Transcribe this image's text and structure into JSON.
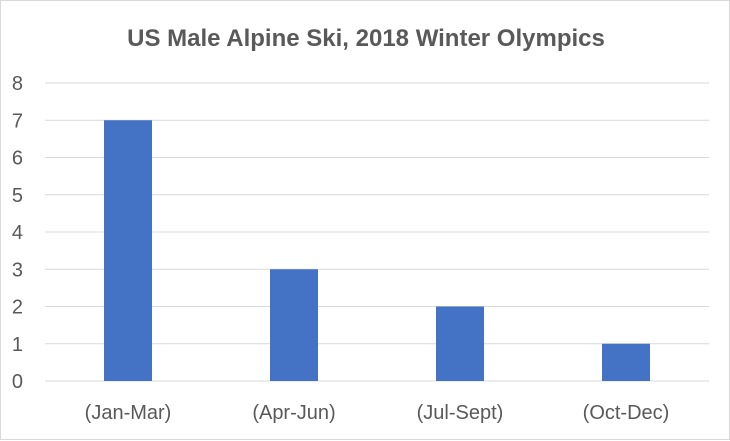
{
  "chart_data": {
    "type": "bar",
    "title": "US Male Alpine Ski, 2018 Winter Olympics",
    "categories": [
      "(Jan-Mar)",
      "(Apr-Jun)",
      "(Jul-Sept)",
      "(Oct-Dec)"
    ],
    "values": [
      7,
      3,
      2,
      1
    ],
    "xlabel": "",
    "ylabel": "",
    "ylim": [
      0,
      8
    ],
    "yticks": [
      "0",
      "1",
      "2",
      "3",
      "4",
      "5",
      "6",
      "7",
      "8"
    ],
    "grid": true,
    "legend": "none",
    "bar_color": "#4472c4",
    "grid_color": "#d9d9d9"
  }
}
